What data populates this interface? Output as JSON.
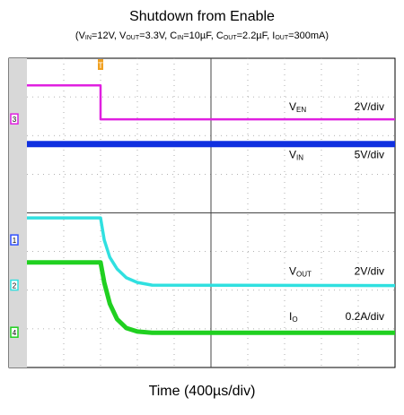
{
  "chart_data": {
    "type": "line",
    "title": "Shutdown from Enable",
    "subtitle_parts": [
      {
        "t": "(V",
        "sub": false
      },
      {
        "t": "IN",
        "sub": true
      },
      {
        "t": "=12V, V",
        "sub": false
      },
      {
        "t": "OUT",
        "sub": true
      },
      {
        "t": "=3.3V, C",
        "sub": false
      },
      {
        "t": "IN",
        "sub": true
      },
      {
        "t": "=10µF, C",
        "sub": false
      },
      {
        "t": "OUT",
        "sub": true
      },
      {
        "t": "=2.2µF, I",
        "sub": false
      },
      {
        "t": "OUT",
        "sub": true
      },
      {
        "t": "=300mA)",
        "sub": false
      }
    ],
    "xlabel": "Time (400µs/div)",
    "divisions": {
      "x": 10,
      "y": 8
    },
    "grid": true,
    "trigger_marker": "T",
    "traces": [
      {
        "name_main": "V",
        "name_sub": "EN",
        "scale": "2V/div",
        "channel": "3",
        "color": "#e020e0",
        "points": [
          [
            0,
            7.3
          ],
          [
            2.0,
            7.3
          ],
          [
            2.0,
            6.42
          ],
          [
            10,
            6.42
          ]
        ]
      },
      {
        "name_main": "V",
        "name_sub": "IN",
        "scale": "5V/div",
        "channel": "",
        "color": "#1030e0",
        "points": [
          [
            0,
            5.78
          ],
          [
            10,
            5.78
          ]
        ]
      },
      {
        "name_main": "V",
        "name_sub": "OUT",
        "scale": "2V/div",
        "channel": "2",
        "color": "#30e0e0",
        "points": [
          [
            0,
            3.87
          ],
          [
            2.0,
            3.87
          ],
          [
            2.1,
            3.3
          ],
          [
            2.25,
            2.85
          ],
          [
            2.45,
            2.55
          ],
          [
            2.7,
            2.32
          ],
          [
            3.0,
            2.2
          ],
          [
            3.4,
            2.13
          ],
          [
            10,
            2.12
          ]
        ]
      },
      {
        "name_main": "I",
        "name_sub": "O",
        "scale": "0.2A/div",
        "channel": "4",
        "color": "#20d020",
        "points": [
          [
            0,
            2.72
          ],
          [
            2.0,
            2.72
          ],
          [
            2.1,
            2.2
          ],
          [
            2.25,
            1.65
          ],
          [
            2.45,
            1.25
          ],
          [
            2.7,
            1.02
          ],
          [
            3.0,
            0.93
          ],
          [
            3.4,
            0.9
          ],
          [
            10,
            0.9
          ]
        ]
      }
    ],
    "channel_markers": [
      "1",
      "2",
      "3",
      "4"
    ]
  }
}
